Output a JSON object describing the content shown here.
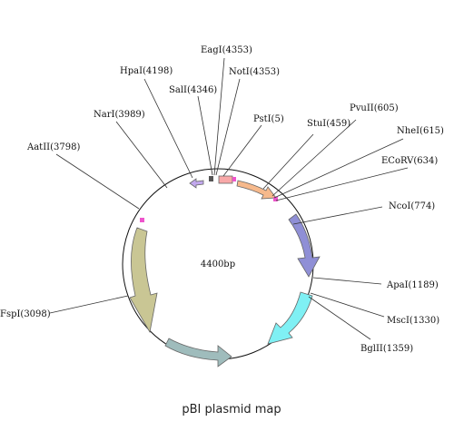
{
  "plasmid": {
    "size_label": "4400bp",
    "length_bp": 4400,
    "title": "pBI plasmid map"
  },
  "sites": [
    {
      "name": "PstI(5)",
      "bp": 5
    },
    {
      "name": "StuI(459)",
      "bp": 459
    },
    {
      "name": "PvuII(605)",
      "bp": 605
    },
    {
      "name": "NheI(615)",
      "bp": 615
    },
    {
      "name": "ECoRV(634)",
      "bp": 634
    },
    {
      "name": "NcoI(774)",
      "bp": 774
    },
    {
      "name": "ApaI(1189)",
      "bp": 1189
    },
    {
      "name": "MscI(1330)",
      "bp": 1330
    },
    {
      "name": "BglII(1359)",
      "bp": 1359
    },
    {
      "name": "FspI(3098)",
      "bp": 3098
    },
    {
      "name": "AatII(3798)",
      "bp": 3798
    },
    {
      "name": "NarI(3989)",
      "bp": 3989
    },
    {
      "name": "HpaI(4198)",
      "bp": 4198
    },
    {
      "name": "SalI(4346)",
      "bp": 4346
    },
    {
      "name": "EagI(4353)",
      "bp": 4353
    },
    {
      "name": "NotI(4353)",
      "bp": 4353
    }
  ],
  "features": [
    {
      "id": "orange-arrow",
      "color": "#f6b98c",
      "direction": "cw"
    },
    {
      "id": "navy-arrow",
      "color": "#8f8fd6",
      "direction": "cw"
    },
    {
      "id": "cyan-arrow",
      "color": "#7ff0f4",
      "direction": "cw"
    },
    {
      "id": "teal-arrow",
      "color": "#9fbcbc",
      "direction": "ccw"
    },
    {
      "id": "olive-arrow",
      "color": "#c9c694",
      "direction": "ccw"
    },
    {
      "id": "lavender-arrow",
      "color": "#c2a8ee",
      "direction": "ccw"
    },
    {
      "id": "pink-box",
      "color": "#f8a8a8"
    }
  ],
  "markers": {
    "magenta": "#ee55cc",
    "dark": "#555555"
  }
}
